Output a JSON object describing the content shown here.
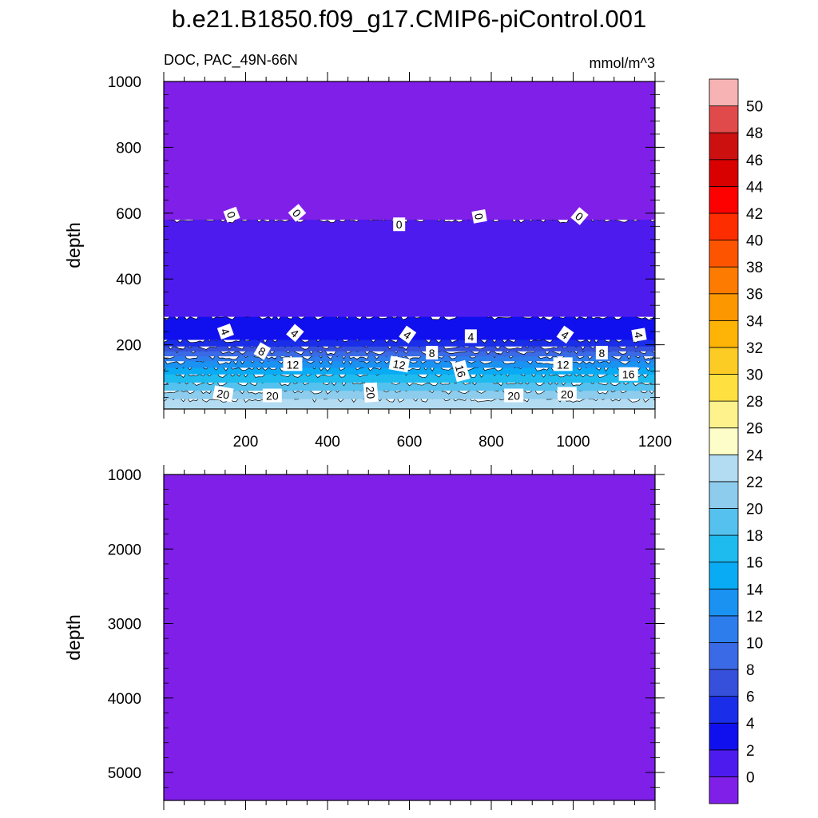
{
  "title": "b.e21.B1850.f09_g17.CMIP6-piControl.001",
  "chart_data": [
    {
      "type": "heatmap",
      "panel": "upper",
      "variable": "DOC",
      "region": "PAC_49N-66N",
      "left_label": "DOC, PAC_49N-66N",
      "units": "mmol/m^3",
      "xlabel": "",
      "ylabel": "depth",
      "xlim": [
        0,
        1200
      ],
      "ylim": [
        1000,
        5
      ],
      "x_ticks": [
        200,
        400,
        600,
        800,
        1000,
        1200
      ],
      "y_ticks": [
        200,
        400,
        600,
        800,
        1000
      ],
      "bands": [
        {
          "min": 22,
          "max": 24,
          "top": 5,
          "bottom": 35,
          "color": "#b3dcf2"
        },
        {
          "min": 20,
          "max": 22,
          "top": 35,
          "bottom": 60,
          "color": "#8dcced"
        },
        {
          "min": 18,
          "max": 20,
          "top": 60,
          "bottom": 85,
          "color": "#55c1ee"
        },
        {
          "min": 16,
          "max": 18,
          "top": 85,
          "bottom": 110,
          "color": "#1ebbef"
        },
        {
          "min": 14,
          "max": 16,
          "top": 110,
          "bottom": 130,
          "color": "#0aabf5"
        },
        {
          "min": 12,
          "max": 14,
          "top": 130,
          "bottom": 150,
          "color": "#1992f2"
        },
        {
          "min": 10,
          "max": 12,
          "top": 150,
          "bottom": 165,
          "color": "#2d7ded"
        },
        {
          "min": 8,
          "max": 10,
          "top": 165,
          "bottom": 180,
          "color": "#3a6ae6"
        },
        {
          "min": 6,
          "max": 8,
          "top": 180,
          "bottom": 195,
          "color": "#3650dc"
        },
        {
          "min": 4,
          "max": 6,
          "top": 195,
          "bottom": 215,
          "color": "#1a2de8"
        },
        {
          "min": 2,
          "max": 4,
          "top": 215,
          "bottom": 285,
          "color": "#1010ee"
        },
        {
          "min": 0,
          "max": 2,
          "top": 285,
          "bottom": 580,
          "color": "#4e1bef"
        },
        {
          "min": -2,
          "max": 0,
          "top": 580,
          "bottom": 1000,
          "color": "#7f1fe8"
        }
      ],
      "contour_labels": [
        {
          "text": "20",
          "x": 145,
          "depth": 50,
          "angle": 10
        },
        {
          "text": "20",
          "x": 265,
          "depth": 45,
          "angle": 0
        },
        {
          "text": "20",
          "x": 505,
          "depth": 55,
          "angle": 85
        },
        {
          "text": "20",
          "x": 855,
          "depth": 45,
          "angle": 0
        },
        {
          "text": "20",
          "x": 985,
          "depth": 50,
          "angle": 0
        },
        {
          "text": "12",
          "x": 315,
          "depth": 140,
          "angle": 0
        },
        {
          "text": "12",
          "x": 575,
          "depth": 140,
          "angle": 10
        },
        {
          "text": "16",
          "x": 725,
          "depth": 120,
          "angle": 75
        },
        {
          "text": "12",
          "x": 975,
          "depth": 140,
          "angle": 0
        },
        {
          "text": "16",
          "x": 1135,
          "depth": 110,
          "angle": 0
        },
        {
          "text": "8",
          "x": 240,
          "depth": 180,
          "angle": 30
        },
        {
          "text": "8",
          "x": 655,
          "depth": 175,
          "angle": 0
        },
        {
          "text": "8",
          "x": 1070,
          "depth": 175,
          "angle": 0
        },
        {
          "text": "4",
          "x": 150,
          "depth": 240,
          "angle": 70
        },
        {
          "text": "4",
          "x": 320,
          "depth": 235,
          "angle": 40
        },
        {
          "text": "4",
          "x": 595,
          "depth": 230,
          "angle": 35
        },
        {
          "text": "4",
          "x": 750,
          "depth": 225,
          "angle": 0
        },
        {
          "text": "4",
          "x": 980,
          "depth": 230,
          "angle": 35
        },
        {
          "text": "4",
          "x": 1160,
          "depth": 230,
          "angle": 80
        },
        {
          "text": "0",
          "x": 165,
          "depth": 595,
          "angle": 70
        },
        {
          "text": "0",
          "x": 325,
          "depth": 600,
          "angle": 50
        },
        {
          "text": "0",
          "x": 575,
          "depth": 565,
          "angle": 0
        },
        {
          "text": "0",
          "x": 770,
          "depth": 590,
          "angle": 80
        },
        {
          "text": "0",
          "x": 1015,
          "depth": 590,
          "angle": 40
        }
      ]
    },
    {
      "type": "heatmap",
      "panel": "lower",
      "xlabel": "",
      "ylabel": "depth",
      "xlim": [
        0,
        1200
      ],
      "ylim": [
        1000,
        5375
      ],
      "y_ticks": [
        1000,
        2000,
        3000,
        4000,
        5000
      ],
      "bands": [
        {
          "min": -2,
          "max": 0,
          "top": 1000,
          "bottom": 5375,
          "color": "#7f1fe8"
        }
      ]
    }
  ],
  "colorbar": {
    "labels": [
      "0",
      "2",
      "4",
      "6",
      "8",
      "10",
      "12",
      "14",
      "16",
      "18",
      "20",
      "22",
      "24",
      "26",
      "28",
      "30",
      "32",
      "34",
      "36",
      "38",
      "40",
      "42",
      "44",
      "46",
      "48",
      "50"
    ],
    "colors": [
      "#7f1fe8",
      "#4e1bef",
      "#1010ee",
      "#1a2de8",
      "#3650dc",
      "#3a6ae6",
      "#2d7ded",
      "#1992f2",
      "#0aabf5",
      "#1ebbef",
      "#55c1ee",
      "#8dcced",
      "#b3dcf2",
      "#fdfdc9",
      "#fef28c",
      "#fee041",
      "#fdcc24",
      "#fdb407",
      "#fd9700",
      "#fd7b00",
      "#fd5400",
      "#fd2d00",
      "#fd0000",
      "#d90000",
      "#cc1010",
      "#e04a4a",
      "#f7b3b3"
    ]
  }
}
